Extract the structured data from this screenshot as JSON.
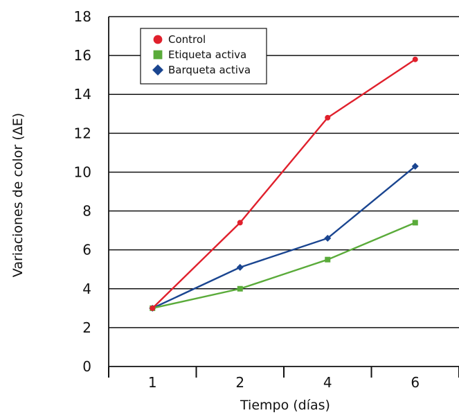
{
  "chart_data": {
    "type": "line",
    "categories": [
      "1",
      "2",
      "4",
      "6"
    ],
    "xlabel": "Tiempo (días)",
    "ylabel": "Variaciones de color (ΔE)",
    "ylim": [
      0,
      18
    ],
    "yticks": [
      0,
      2,
      4,
      6,
      8,
      10,
      12,
      14,
      16,
      18
    ],
    "grid": "horizontal",
    "legend_position": "top-left",
    "series": [
      {
        "name": "Control",
        "values": [
          3.0,
          7.4,
          12.8,
          15.8
        ],
        "color": "#e0202c",
        "marker": "circle"
      },
      {
        "name": "Etiqueta activa",
        "values": [
          3.0,
          4.0,
          5.5,
          7.4
        ],
        "color": "#5aab3a",
        "marker": "square"
      },
      {
        "name": "Barqueta activa",
        "values": [
          3.0,
          5.1,
          6.6,
          10.3
        ],
        "color": "#1a4590",
        "marker": "diamond"
      }
    ]
  }
}
